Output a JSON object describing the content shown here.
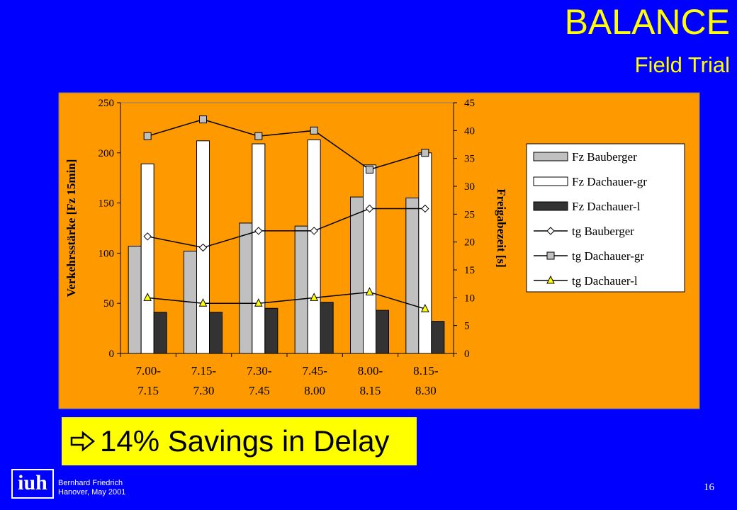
{
  "slide": {
    "title": "BALANCE",
    "subtitle": "Field Trial",
    "callout": "14% Savings in Delay",
    "logo": "iuh",
    "author": "Bernhard Friedrich",
    "place_date": "Hanover, May 2001",
    "page": "16"
  },
  "chart_data": {
    "type": "bar",
    "y_label": "Verkehrsstärke [Fz 15min]",
    "y2_label": "Freigabezeit [s]",
    "categories": [
      "7.00-7.15",
      "7.15-7.30",
      "7.30-7.45",
      "7.45-8.00",
      "8.00-8.15",
      "8.15-8.30"
    ],
    "ylim": [
      0,
      250
    ],
    "yticks": [
      0,
      50,
      100,
      150,
      200,
      250
    ],
    "y2lim": [
      0,
      45
    ],
    "y2ticks": [
      0,
      5,
      10,
      15,
      20,
      25,
      30,
      35,
      40,
      45
    ],
    "series": [
      {
        "name": "Fz Bauberger",
        "kind": "bar",
        "color": "#c0c0c0",
        "values": [
          107,
          102,
          130,
          127,
          156,
          155
        ]
      },
      {
        "name": "Fz Dachauer-gr",
        "kind": "bar",
        "color": "#ffffff",
        "values": [
          189,
          212,
          209,
          213,
          188,
          200
        ]
      },
      {
        "name": "Fz Dachauer-l",
        "kind": "bar",
        "color": "#333333",
        "values": [
          41,
          41,
          45,
          51,
          43,
          32
        ]
      },
      {
        "name": "tg Bauberger",
        "kind": "line",
        "axis": "y2",
        "marker": "diamond",
        "color": "#ffffff",
        "values": [
          21,
          19,
          22,
          22,
          26,
          26
        ]
      },
      {
        "name": "tg Dachauer-gr",
        "kind": "line",
        "axis": "y2",
        "marker": "square",
        "color": "#c0c0c0",
        "values": [
          39,
          42,
          39,
          40,
          33,
          36
        ]
      },
      {
        "name": "tg Dachauer-l",
        "kind": "line",
        "axis": "y2",
        "marker": "triangle",
        "color": "#ffff00",
        "values": [
          10,
          9,
          9,
          10,
          11,
          8
        ]
      }
    ]
  }
}
